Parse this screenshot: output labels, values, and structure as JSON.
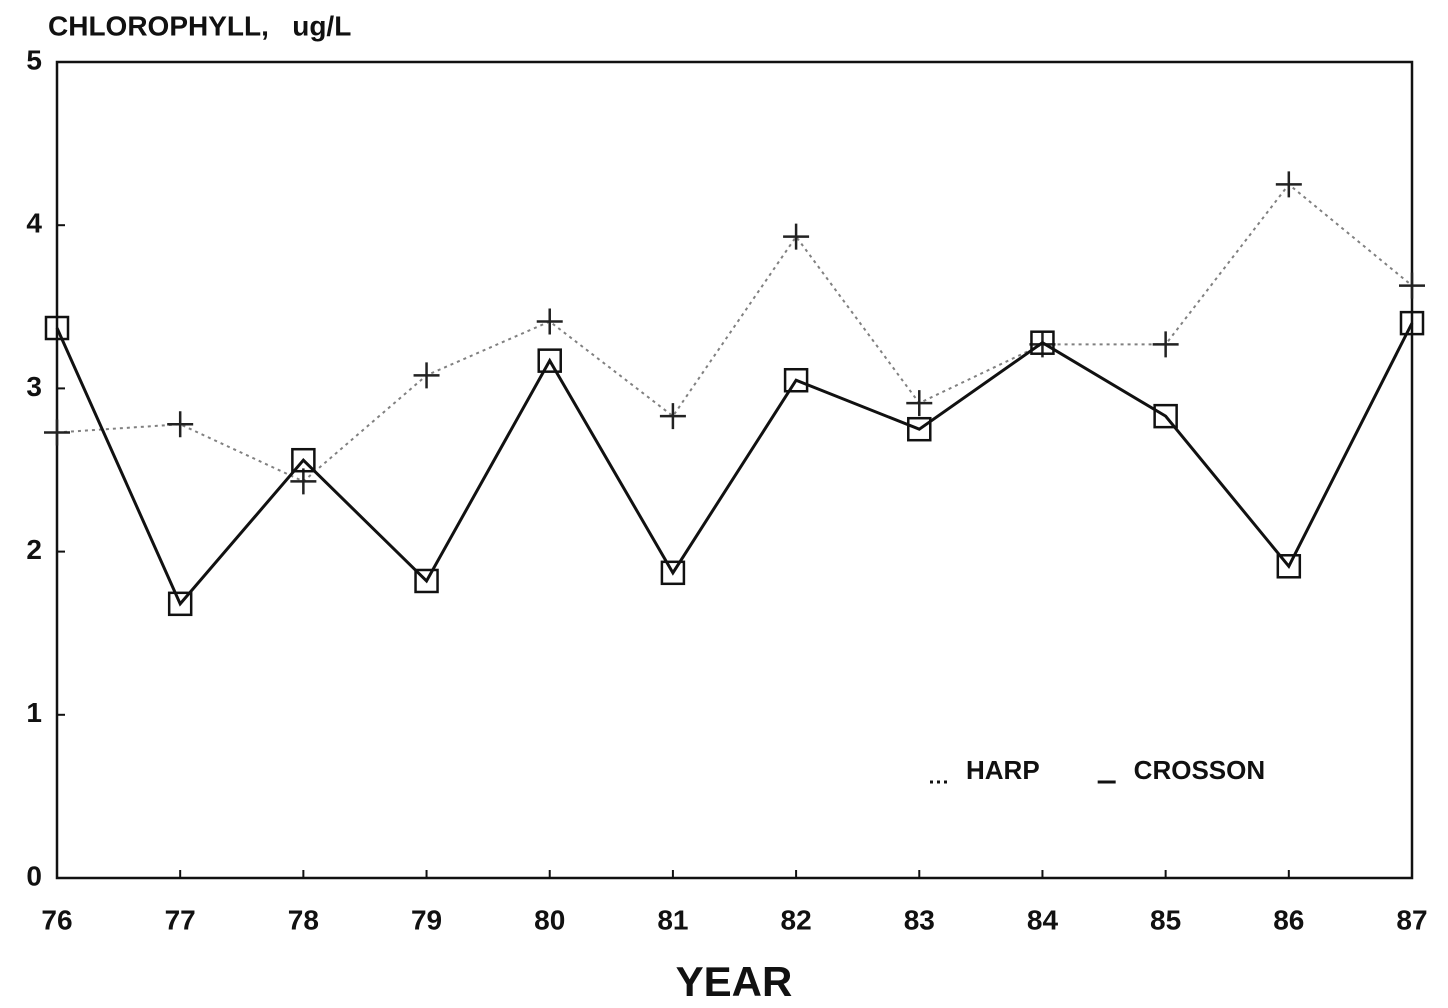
{
  "chart_data": {
    "type": "line",
    "title": "CHLOROPHYLL,   ug/L",
    "x_label": "YEAR",
    "x": [
      76,
      77,
      78,
      79,
      80,
      81,
      82,
      83,
      84,
      85,
      86,
      87
    ],
    "xlim": [
      76,
      87
    ],
    "xticks": [
      76,
      77,
      78,
      79,
      80,
      81,
      82,
      83,
      84,
      85,
      86,
      87
    ],
    "ylim": [
      0,
      5
    ],
    "yticks": [
      0,
      1,
      2,
      3,
      4,
      5
    ],
    "grid": false,
    "legend": "lower right",
    "series": [
      {
        "name": "HARP",
        "color": "#808080",
        "line_style": "dotted",
        "marker": "plus",
        "values": [
          2.73,
          2.78,
          2.43,
          3.08,
          3.41,
          2.83,
          3.93,
          2.91,
          3.27,
          3.27,
          4.25,
          3.63
        ]
      },
      {
        "name": "CROSSON",
        "color": "#111111",
        "line_style": "solid",
        "marker": "square",
        "values": [
          3.37,
          1.68,
          2.56,
          1.82,
          3.17,
          1.87,
          3.05,
          2.75,
          3.28,
          2.83,
          1.91,
          3.4
        ]
      }
    ]
  }
}
